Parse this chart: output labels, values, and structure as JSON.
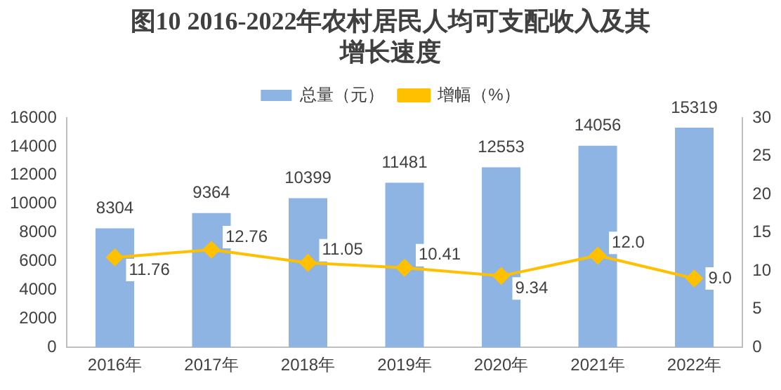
{
  "chart_data": {
    "type": "bar",
    "title": "图10  2016-2022年农村居民人均可支配收入及其增长速度",
    "categories": [
      "2016年",
      "2017年",
      "2018年",
      "2019年",
      "2020年",
      "2021年",
      "2022年"
    ],
    "series": [
      {
        "name": "总量（元）",
        "color": "#8db4e2",
        "values": [
          8304,
          9364,
          10399,
          11481,
          12553,
          14056,
          15319
        ],
        "value_labels": [
          "8304",
          "9364",
          "10399",
          "11481",
          "12553",
          "14056",
          "15319"
        ]
      },
      {
        "name": "增幅（%）",
        "type": "line",
        "axis": "y2",
        "color": "#ffc000",
        "values": [
          11.76,
          12.76,
          11.05,
          10.41,
          9.34,
          12.0,
          9.0
        ],
        "value_labels": [
          "11.76",
          "12.76",
          "11.05",
          "10.41",
          "9.34",
          "12.0",
          "9.0"
        ]
      }
    ],
    "ylim": [
      0,
      16000
    ],
    "yticks": [
      0,
      2000,
      4000,
      6000,
      8000,
      10000,
      12000,
      14000,
      16000
    ],
    "y2lim": [
      0,
      30
    ],
    "y2ticks": [
      0,
      5,
      10,
      15,
      20,
      25,
      30
    ],
    "grid": false,
    "legend": "top",
    "marker": "diamond",
    "line_style": "solid"
  }
}
